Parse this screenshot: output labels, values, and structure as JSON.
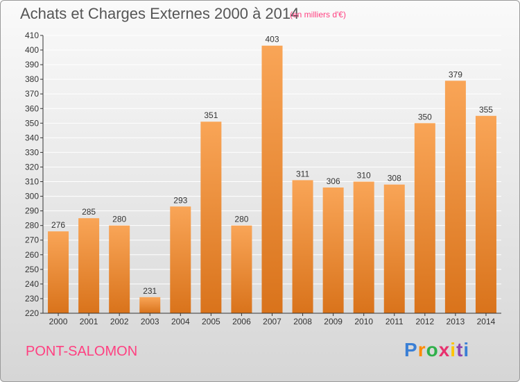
{
  "header": {
    "title": "Achats et Charges Externes 2000 à 2014",
    "subtitle": "(en milliers d'€)"
  },
  "footer": {
    "commune": "PONT-SALOMON",
    "brand": "Proxiti",
    "brand_colors": [
      "#3a7fd5",
      "#ff8a00",
      "#2fb04a",
      "#e8316e",
      "#ffc400",
      "#8e44ad",
      "#3a7fd5"
    ]
  },
  "colors": {
    "bar_light": "#f9a557",
    "bar_dark": "#d9731b",
    "grid": "#ffffff",
    "axis": "#333333"
  },
  "chart_data": {
    "type": "bar",
    "title": "Achats et Charges Externes 2000 à 2014",
    "subtitle": "(en milliers d'€)",
    "xlabel": "",
    "ylabel": "",
    "categories": [
      "2000",
      "2001",
      "2002",
      "2003",
      "2004",
      "2005",
      "2006",
      "2007",
      "2008",
      "2009",
      "2010",
      "2011",
      "2012",
      "2013",
      "2014"
    ],
    "values": [
      276,
      285,
      280,
      231,
      293,
      351,
      280,
      403,
      311,
      306,
      310,
      308,
      350,
      379,
      355
    ],
    "ylim": [
      220,
      410
    ],
    "yticks": [
      220,
      230,
      240,
      250,
      260,
      270,
      280,
      290,
      300,
      310,
      320,
      330,
      340,
      350,
      360,
      370,
      380,
      390,
      400,
      410
    ],
    "grid": true,
    "legend": "none"
  }
}
